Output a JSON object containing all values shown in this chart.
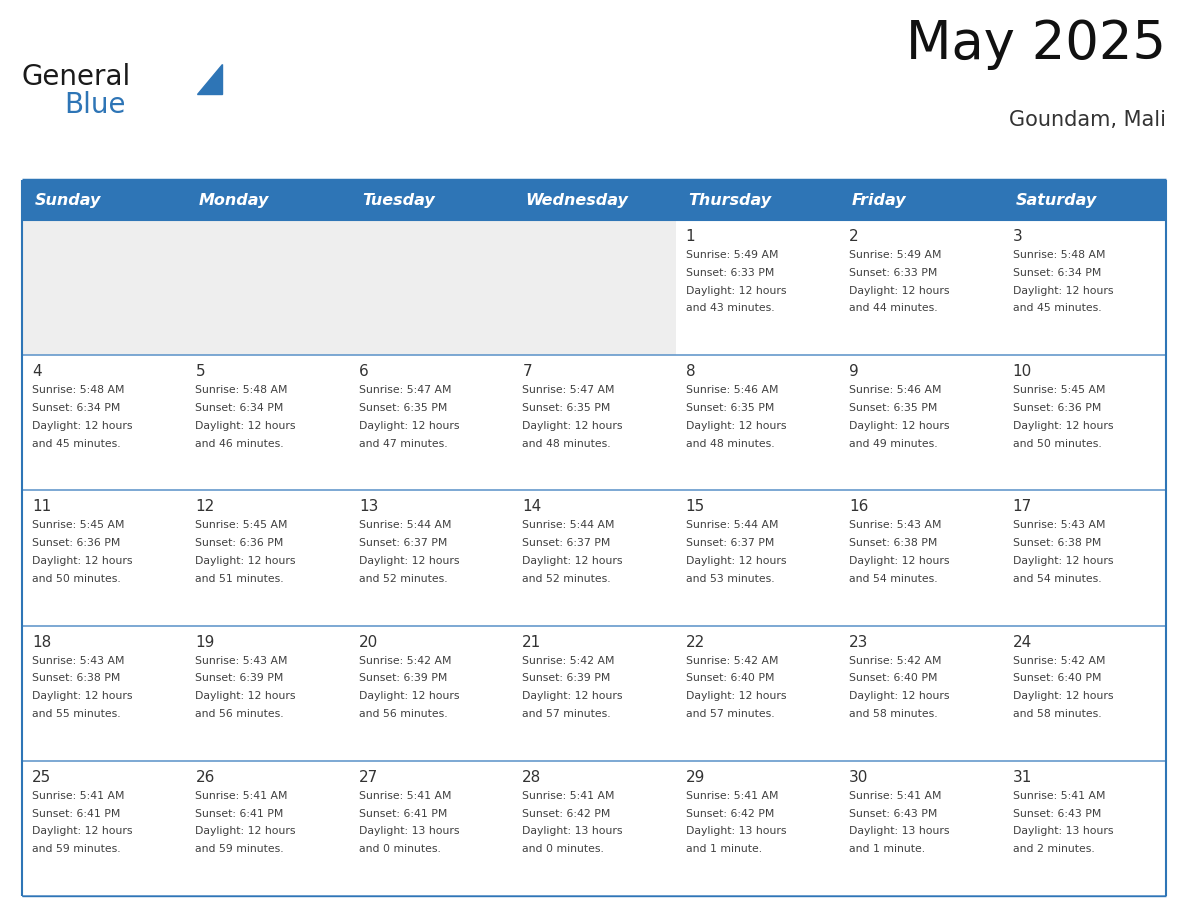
{
  "title": "May 2025",
  "subtitle": "Goundam, Mali",
  "days_of_week": [
    "Sunday",
    "Monday",
    "Tuesday",
    "Wednesday",
    "Thursday",
    "Friday",
    "Saturday"
  ],
  "header_bg": "#2E75B6",
  "header_text_color": "#FFFFFF",
  "row0_empty_bg": "#EEEEEE",
  "row0_filled_bg": "#FFFFFF",
  "cell_bg_white": "#FFFFFF",
  "text_color": "#404040",
  "day_num_color": "#333333",
  "border_color": "#2E75B6",
  "line_color": "#6699CC",
  "calendar_data": [
    [
      {
        "day": null,
        "sunrise": null,
        "sunset": null,
        "daylight": null
      },
      {
        "day": null,
        "sunrise": null,
        "sunset": null,
        "daylight": null
      },
      {
        "day": null,
        "sunrise": null,
        "sunset": null,
        "daylight": null
      },
      {
        "day": null,
        "sunrise": null,
        "sunset": null,
        "daylight": null
      },
      {
        "day": 1,
        "sunrise": "5:49 AM",
        "sunset": "6:33 PM",
        "daylight": "12 hours\nand 43 minutes."
      },
      {
        "day": 2,
        "sunrise": "5:49 AM",
        "sunset": "6:33 PM",
        "daylight": "12 hours\nand 44 minutes."
      },
      {
        "day": 3,
        "sunrise": "5:48 AM",
        "sunset": "6:34 PM",
        "daylight": "12 hours\nand 45 minutes."
      }
    ],
    [
      {
        "day": 4,
        "sunrise": "5:48 AM",
        "sunset": "6:34 PM",
        "daylight": "12 hours\nand 45 minutes."
      },
      {
        "day": 5,
        "sunrise": "5:48 AM",
        "sunset": "6:34 PM",
        "daylight": "12 hours\nand 46 minutes."
      },
      {
        "day": 6,
        "sunrise": "5:47 AM",
        "sunset": "6:35 PM",
        "daylight": "12 hours\nand 47 minutes."
      },
      {
        "day": 7,
        "sunrise": "5:47 AM",
        "sunset": "6:35 PM",
        "daylight": "12 hours\nand 48 minutes."
      },
      {
        "day": 8,
        "sunrise": "5:46 AM",
        "sunset": "6:35 PM",
        "daylight": "12 hours\nand 48 minutes."
      },
      {
        "day": 9,
        "sunrise": "5:46 AM",
        "sunset": "6:35 PM",
        "daylight": "12 hours\nand 49 minutes."
      },
      {
        "day": 10,
        "sunrise": "5:45 AM",
        "sunset": "6:36 PM",
        "daylight": "12 hours\nand 50 minutes."
      }
    ],
    [
      {
        "day": 11,
        "sunrise": "5:45 AM",
        "sunset": "6:36 PM",
        "daylight": "12 hours\nand 50 minutes."
      },
      {
        "day": 12,
        "sunrise": "5:45 AM",
        "sunset": "6:36 PM",
        "daylight": "12 hours\nand 51 minutes."
      },
      {
        "day": 13,
        "sunrise": "5:44 AM",
        "sunset": "6:37 PM",
        "daylight": "12 hours\nand 52 minutes."
      },
      {
        "day": 14,
        "sunrise": "5:44 AM",
        "sunset": "6:37 PM",
        "daylight": "12 hours\nand 52 minutes."
      },
      {
        "day": 15,
        "sunrise": "5:44 AM",
        "sunset": "6:37 PM",
        "daylight": "12 hours\nand 53 minutes."
      },
      {
        "day": 16,
        "sunrise": "5:43 AM",
        "sunset": "6:38 PM",
        "daylight": "12 hours\nand 54 minutes."
      },
      {
        "day": 17,
        "sunrise": "5:43 AM",
        "sunset": "6:38 PM",
        "daylight": "12 hours\nand 54 minutes."
      }
    ],
    [
      {
        "day": 18,
        "sunrise": "5:43 AM",
        "sunset": "6:38 PM",
        "daylight": "12 hours\nand 55 minutes."
      },
      {
        "day": 19,
        "sunrise": "5:43 AM",
        "sunset": "6:39 PM",
        "daylight": "12 hours\nand 56 minutes."
      },
      {
        "day": 20,
        "sunrise": "5:42 AM",
        "sunset": "6:39 PM",
        "daylight": "12 hours\nand 56 minutes."
      },
      {
        "day": 21,
        "sunrise": "5:42 AM",
        "sunset": "6:39 PM",
        "daylight": "12 hours\nand 57 minutes."
      },
      {
        "day": 22,
        "sunrise": "5:42 AM",
        "sunset": "6:40 PM",
        "daylight": "12 hours\nand 57 minutes."
      },
      {
        "day": 23,
        "sunrise": "5:42 AM",
        "sunset": "6:40 PM",
        "daylight": "12 hours\nand 58 minutes."
      },
      {
        "day": 24,
        "sunrise": "5:42 AM",
        "sunset": "6:40 PM",
        "daylight": "12 hours\nand 58 minutes."
      }
    ],
    [
      {
        "day": 25,
        "sunrise": "5:41 AM",
        "sunset": "6:41 PM",
        "daylight": "12 hours\nand 59 minutes."
      },
      {
        "day": 26,
        "sunrise": "5:41 AM",
        "sunset": "6:41 PM",
        "daylight": "12 hours\nand 59 minutes."
      },
      {
        "day": 27,
        "sunrise": "5:41 AM",
        "sunset": "6:41 PM",
        "daylight": "13 hours\nand 0 minutes."
      },
      {
        "day": 28,
        "sunrise": "5:41 AM",
        "sunset": "6:42 PM",
        "daylight": "13 hours\nand 0 minutes."
      },
      {
        "day": 29,
        "sunrise": "5:41 AM",
        "sunset": "6:42 PM",
        "daylight": "13 hours\nand 1 minute."
      },
      {
        "day": 30,
        "sunrise": "5:41 AM",
        "sunset": "6:43 PM",
        "daylight": "13 hours\nand 1 minute."
      },
      {
        "day": 31,
        "sunrise": "5:41 AM",
        "sunset": "6:43 PM",
        "daylight": "13 hours\nand 2 minutes."
      }
    ]
  ],
  "logo_text1": "General",
  "logo_text2": "Blue",
  "logo_color1": "#1A1A1A",
  "logo_color2": "#2E75B6",
  "logo_triangle_color": "#2E75B6",
  "fig_width": 11.88,
  "fig_height": 9.18,
  "dpi": 100
}
